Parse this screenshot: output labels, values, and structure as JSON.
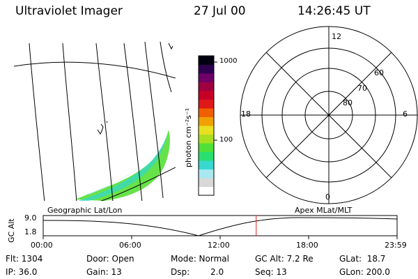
{
  "header": {
    "instrument": "Ultraviolet Imager",
    "date": "27 Jul 00",
    "time": "14:26:45 UT"
  },
  "colorbar": {
    "label": "photon cm⁻²s⁻¹",
    "ticks": [
      "1000",
      "100"
    ],
    "scale": "log",
    "colors": [
      "#ffffff",
      "#d8d8d8",
      "#a8e8f0",
      "#38d8d0",
      "#28e070",
      "#50e038",
      "#a8e020",
      "#e8e020",
      "#f0a000",
      "#f06000",
      "#e01818",
      "#c80028",
      "#a00040",
      "#700068",
      "#300050",
      "#000010"
    ]
  },
  "polar_plot": {
    "hour_labels": {
      "top": "12",
      "left": "18",
      "right": "6",
      "bottom": "0"
    },
    "lat_labels": [
      "60",
      "70",
      "80"
    ]
  },
  "map_panel": {
    "label": "Geographic Lat/Lon"
  },
  "altitude_plot": {
    "right_label": "Apex MLat/MLT",
    "y_axis_title": "GC Alt",
    "y_ticks": [
      "9.0",
      "1.8"
    ],
    "x_ticks": [
      "00:00",
      "06:00",
      "12:00",
      "18:00",
      "23:59"
    ],
    "current_time_marker_hours": 14.446,
    "marker_color": "#e02020"
  },
  "info": {
    "flt": "Flt: 1304",
    "ip": "IP: 36.0",
    "door": "Door: Open",
    "gain": "Gain: 13",
    "mode": "Mode: Normal",
    "dsp_label": "Dsp:",
    "dsp_value": "2.0",
    "gcalt": "GC Alt: 7.2 Re",
    "seq": "Seq: 13",
    "glat": "GLat:  18.7",
    "glon": "GLon: 200.0"
  }
}
